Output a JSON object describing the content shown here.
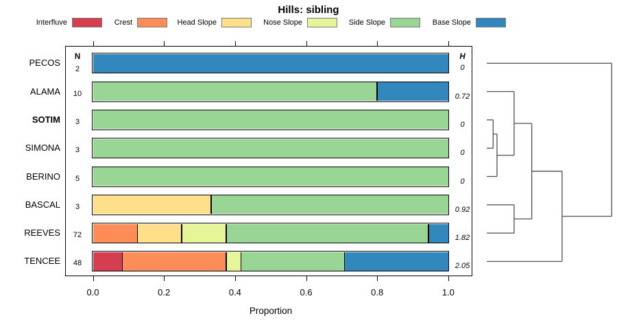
{
  "title": "Hills: sibling",
  "axis": {
    "label": "Proportion",
    "ticks": [
      "0.0",
      "0.2",
      "0.4",
      "0.6",
      "0.8",
      "1.0"
    ],
    "tick_values": [
      0,
      0.2,
      0.4,
      0.6,
      0.8,
      1.0
    ]
  },
  "columns": {
    "n_header": "N",
    "h_header": "H"
  },
  "legend": [
    {
      "label": "Interfluve",
      "color": "#d53e4f"
    },
    {
      "label": "Crest",
      "color": "#fc8d59"
    },
    {
      "label": "Head Slope",
      "color": "#fee08b"
    },
    {
      "label": "Nose Slope",
      "color": "#e6f598"
    },
    {
      "label": "Side Slope",
      "color": "#99d594"
    },
    {
      "label": "Base Slope",
      "color": "#3288bd"
    }
  ],
  "chart_data": {
    "type": "bar",
    "orientation": "horizontal-stacked",
    "title": "Hills: sibling",
    "xlabel": "Proportion",
    "xlim": [
      0,
      1
    ],
    "grid": false,
    "legend_position": "top",
    "categories": [
      "PECOS",
      "ALAMA",
      "SOTIM",
      "SIMONA",
      "BERINO",
      "BASCAL",
      "REEVES",
      "TENCEE"
    ],
    "emphasized_categories": [
      "SOTIM"
    ],
    "n_values": [
      "2",
      "10",
      "3",
      "3",
      "5",
      "3",
      "72",
      "48"
    ],
    "h_values": [
      "0",
      "0.72",
      "0",
      "0",
      "0",
      "0.92",
      "1.82",
      "2.05"
    ],
    "series": [
      {
        "name": "Interfluve",
        "color": "#d53e4f",
        "values": [
          0,
          0,
          0,
          0,
          0,
          0,
          0,
          0.083333
        ]
      },
      {
        "name": "Crest",
        "color": "#fc8d59",
        "values": [
          0,
          0,
          0,
          0,
          0,
          0,
          0.125,
          0.291667
        ]
      },
      {
        "name": "Head Slope",
        "color": "#fee08b",
        "values": [
          0,
          0,
          0,
          0,
          0,
          0.333333,
          0.125,
          0
        ]
      },
      {
        "name": "Nose Slope",
        "color": "#e6f598",
        "values": [
          0,
          0,
          0,
          0,
          0,
          0,
          0.125,
          0.041667
        ]
      },
      {
        "name": "Side Slope",
        "color": "#99d594",
        "values": [
          0,
          0.8,
          1,
          1,
          1,
          0.666667,
          0.569444,
          0.291667
        ]
      },
      {
        "name": "Base Slope",
        "color": "#3288bd",
        "values": [
          1,
          0.2,
          0,
          0,
          0,
          0,
          0.055556,
          0.291666
        ]
      }
    ],
    "dendrogram": {
      "description": "agglomerative cluster tree over the 8 categories; leaves indexed 0-7 top to bottom, new clusters numbered 8+ in merge order; height is fraction of max merge height",
      "merges": [
        {
          "a": 2,
          "b": 3,
          "height": 0.051
        },
        {
          "a": 8,
          "b": 4,
          "height": 0.082
        },
        {
          "a": 1,
          "b": 9,
          "height": 0.219
        },
        {
          "a": 5,
          "b": 6,
          "height": 0.219
        },
        {
          "a": 10,
          "b": 11,
          "height": 0.36
        },
        {
          "a": 12,
          "b": 7,
          "height": 0.603
        },
        {
          "a": 0,
          "b": 13,
          "height": 1.0
        }
      ]
    }
  }
}
